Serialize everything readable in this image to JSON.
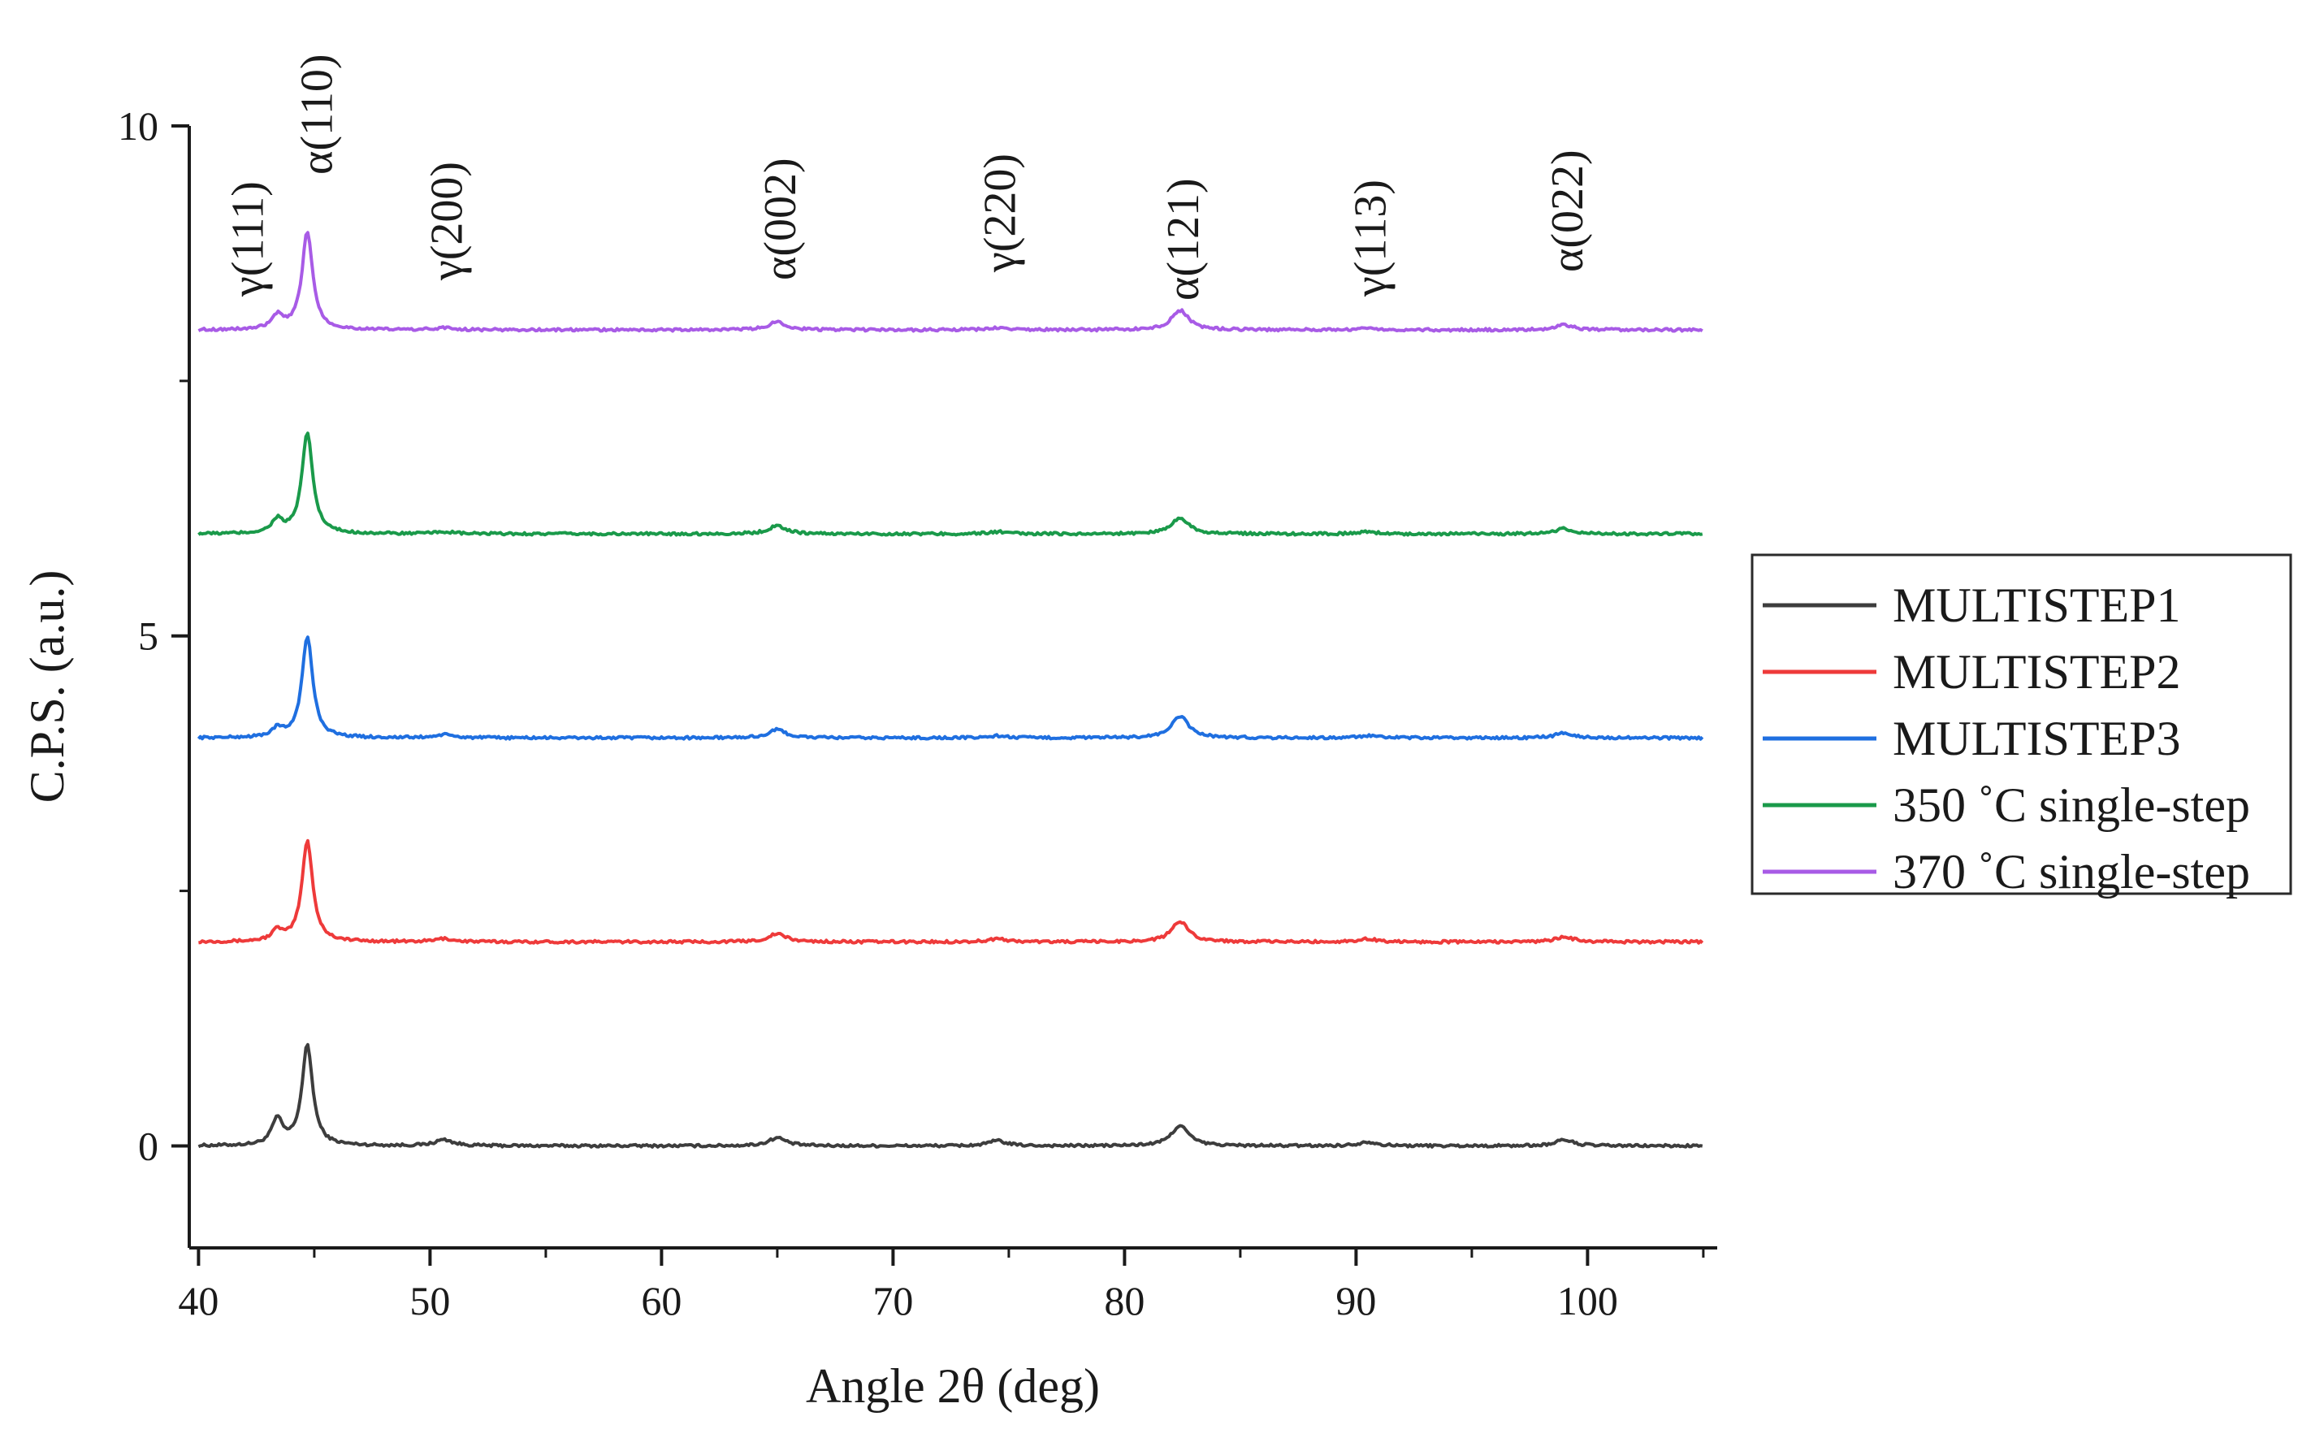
{
  "chart_data": {
    "type": "line",
    "title": "",
    "xlabel": "Angle 2θ (deg)",
    "ylabel": "C.P.S. (a.u.)",
    "xlim": [
      39.6,
      105.6
    ],
    "ylim": [
      -1.0,
      10.0
    ],
    "xticks": [
      40,
      50,
      60,
      70,
      80,
      90,
      100
    ],
    "yticks": [
      0,
      5,
      10
    ],
    "grid": false,
    "legend_position": "right",
    "peaks": [
      {
        "label": "γ(111)",
        "x": 43.4
      },
      {
        "label": "α(110)",
        "x": 44.7
      },
      {
        "label": "γ(200)",
        "x": 50.6
      },
      {
        "label": "α(002)",
        "x": 65.0
      },
      {
        "label": "γ(220)",
        "x": 74.5
      },
      {
        "label": "α(121)",
        "x": 82.4
      },
      {
        "label": "γ(113)",
        "x": 90.5
      },
      {
        "label": "α(022)",
        "x": 99.0
      }
    ],
    "series": [
      {
        "name": "MULTISTEP1",
        "color": "#3d3d3d",
        "baseline": 0.0,
        "peaks": [
          {
            "x": 43.4,
            "height": 0.25
          },
          {
            "x": 44.7,
            "height": 0.98
          },
          {
            "x": 50.6,
            "height": 0.06
          },
          {
            "x": 65.0,
            "height": 0.08
          },
          {
            "x": 74.5,
            "height": 0.05
          },
          {
            "x": 82.4,
            "height": 0.2
          },
          {
            "x": 90.5,
            "height": 0.04
          },
          {
            "x": 99.0,
            "height": 0.06
          }
        ]
      },
      {
        "name": "MULTISTEP2",
        "color": "#ee3a3a",
        "baseline": 2.0,
        "peaks": [
          {
            "x": 43.4,
            "height": 0.1
          },
          {
            "x": 44.7,
            "height": 0.99
          },
          {
            "x": 50.6,
            "height": 0.03
          },
          {
            "x": 65.0,
            "height": 0.08
          },
          {
            "x": 74.5,
            "height": 0.03
          },
          {
            "x": 82.4,
            "height": 0.2
          },
          {
            "x": 90.5,
            "height": 0.03
          },
          {
            "x": 99.0,
            "height": 0.05
          }
        ]
      },
      {
        "name": "MULTISTEP3",
        "color": "#1f6fe0",
        "baseline": 4.0,
        "peaks": [
          {
            "x": 43.4,
            "height": 0.08
          },
          {
            "x": 44.7,
            "height": 0.99
          },
          {
            "x": 50.6,
            "height": 0.03
          },
          {
            "x": 65.0,
            "height": 0.08
          },
          {
            "x": 74.5,
            "height": 0.02
          },
          {
            "x": 82.4,
            "height": 0.21
          },
          {
            "x": 90.5,
            "height": 0.02
          },
          {
            "x": 99.0,
            "height": 0.05
          }
        ]
      },
      {
        "name": "350 ˚C single-step",
        "color": "#1a9a4a",
        "baseline": 6.0,
        "peaks": [
          {
            "x": 43.4,
            "height": 0.13
          },
          {
            "x": 44.7,
            "height": 0.99
          },
          {
            "x": 50.6,
            "height": 0.02
          },
          {
            "x": 65.0,
            "height": 0.08
          },
          {
            "x": 74.5,
            "height": 0.02
          },
          {
            "x": 82.4,
            "height": 0.16
          },
          {
            "x": 90.5,
            "height": 0.02
          },
          {
            "x": 99.0,
            "height": 0.05
          }
        ]
      },
      {
        "name": "370 ˚C single-step",
        "color": "#a85be6",
        "baseline": 8.0,
        "peaks": [
          {
            "x": 43.4,
            "height": 0.13
          },
          {
            "x": 44.7,
            "height": 0.96
          },
          {
            "x": 50.6,
            "height": 0.02
          },
          {
            "x": 65.0,
            "height": 0.08
          },
          {
            "x": 74.5,
            "height": 0.02
          },
          {
            "x": 82.4,
            "height": 0.19
          },
          {
            "x": 90.5,
            "height": 0.02
          },
          {
            "x": 99.0,
            "height": 0.05
          }
        ]
      }
    ]
  }
}
